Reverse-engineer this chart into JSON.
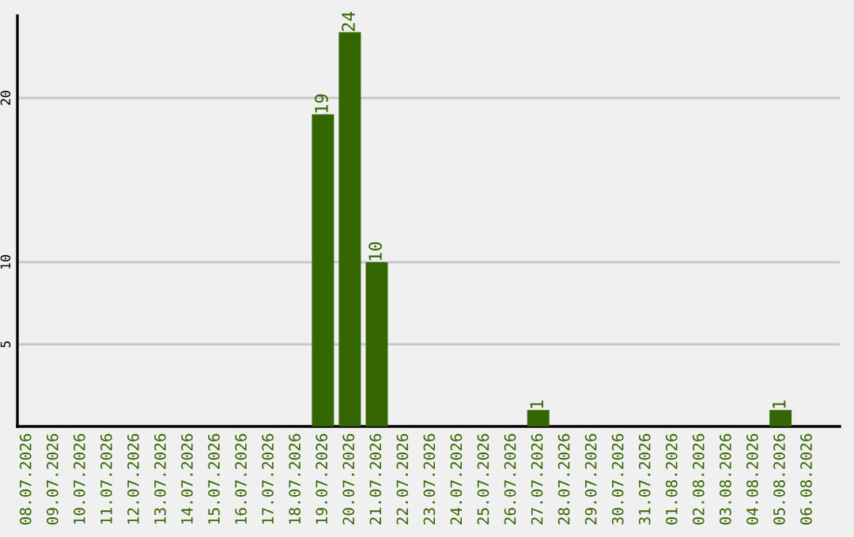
{
  "chart_data": {
    "type": "bar",
    "categories": [
      "08.07.2026",
      "09.07.2026",
      "10.07.2026",
      "11.07.2026",
      "12.07.2026",
      "13.07.2026",
      "14.07.2026",
      "15.07.2026",
      "16.07.2026",
      "17.07.2026",
      "18.07.2026",
      "19.07.2026",
      "20.07.2026",
      "21.07.2026",
      "22.07.2026",
      "23.07.2026",
      "24.07.2026",
      "25.07.2026",
      "26.07.2026",
      "27.07.2026",
      "28.07.2026",
      "29.07.2026",
      "30.07.2026",
      "31.07.2026",
      "01.08.2026",
      "02.08.2026",
      "03.08.2026",
      "04.08.2026",
      "05.08.2026",
      "06.08.2026"
    ],
    "values": [
      0,
      0,
      0,
      0,
      0,
      0,
      0,
      0,
      0,
      0,
      0,
      19,
      24,
      10,
      0,
      0,
      0,
      0,
      0,
      1,
      0,
      0,
      0,
      0,
      0,
      0,
      0,
      0,
      1,
      0
    ],
    "value_labels": [
      null,
      null,
      null,
      null,
      null,
      null,
      null,
      null,
      null,
      null,
      null,
      "19",
      "24",
      "10",
      null,
      null,
      null,
      null,
      null,
      "1",
      null,
      null,
      null,
      null,
      null,
      null,
      null,
      null,
      "1",
      null
    ],
    "color": "#336600",
    "ylim": [
      0,
      25
    ],
    "yticks": [
      5,
      10,
      20
    ],
    "grid": "y",
    "legend": false
  }
}
